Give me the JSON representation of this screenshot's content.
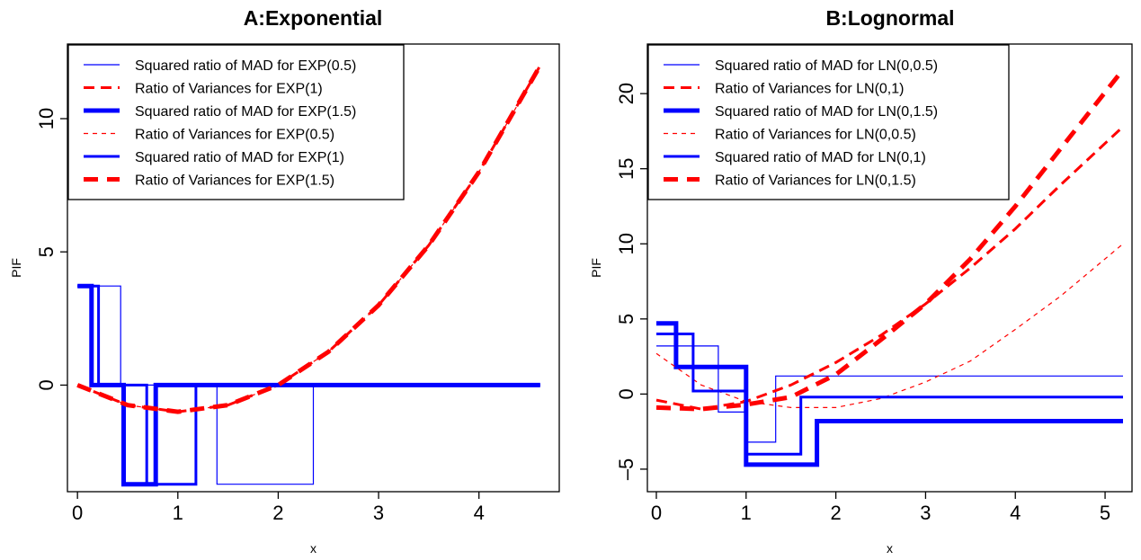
{
  "chart_data": [
    {
      "type": "line",
      "title": "A:Exponential",
      "xlabel": "x",
      "ylabel": "PIF",
      "xlim": [
        -0.1,
        4.8
      ],
      "ylim": [
        -4.0,
        12.8
      ],
      "xticks": [
        0,
        1,
        2,
        3,
        4
      ],
      "yticks": [
        0,
        5,
        10
      ],
      "grid": false,
      "legend_position": "top-left",
      "series": [
        {
          "name": "Squared ratio of MAD for EXP(0.5)",
          "color": "#0000ff",
          "style": "solid-thin",
          "x": [
            0,
            0.43,
            0.43,
            1.39,
            1.39,
            2.35,
            2.35,
            4.61
          ],
          "y": [
            3.72,
            3.72,
            0,
            0,
            -3.72,
            -3.72,
            0,
            0
          ]
        },
        {
          "name": "Ratio of Variances for EXP(1)",
          "color": "#ff0000",
          "style": "dashed-medium",
          "x": [
            0,
            0.5,
            1.0,
            1.5,
            2.0,
            2.5,
            3.0,
            3.5,
            4.0,
            4.61
          ],
          "y": [
            0,
            -0.75,
            -1.0,
            -0.75,
            0,
            1.25,
            3.0,
            5.25,
            8.0,
            11.99
          ]
        },
        {
          "name": "Squared ratio of MAD for EXP(1.5)",
          "color": "#0000ff",
          "style": "solid-thick",
          "x": [
            0,
            0.14,
            0.14,
            0.46,
            0.46,
            0.78,
            0.78,
            4.61
          ],
          "y": [
            3.72,
            3.72,
            0,
            0,
            -3.72,
            -3.72,
            0,
            0
          ]
        },
        {
          "name": "Ratio of Variances for EXP(0.5)",
          "color": "#ff0000",
          "style": "dashed-thin",
          "x": [
            0,
            0.5,
            1.0,
            1.5,
            2.0,
            2.5,
            3.0,
            3.5,
            4.0,
            4.61
          ],
          "y": [
            0,
            -0.75,
            -1.0,
            -0.75,
            0,
            1.25,
            3.0,
            5.25,
            8.0,
            11.99
          ]
        },
        {
          "name": "Squared ratio of MAD for EXP(1)",
          "color": "#0000ff",
          "style": "solid-medium",
          "x": [
            0,
            0.21,
            0.21,
            0.69,
            0.69,
            1.18,
            1.18,
            4.61
          ],
          "y": [
            3.72,
            3.72,
            0,
            0,
            -3.72,
            -3.72,
            0,
            0
          ]
        },
        {
          "name": "Ratio of Variances for EXP(1.5)",
          "color": "#ff0000",
          "style": "dashed-thick",
          "x": [
            0,
            0.5,
            1.0,
            1.5,
            2.0,
            2.5,
            3.0,
            3.5,
            4.0,
            4.61
          ],
          "y": [
            0,
            -0.75,
            -1.0,
            -0.75,
            0,
            1.25,
            3.0,
            5.25,
            8.0,
            11.99
          ]
        }
      ]
    },
    {
      "type": "line",
      "title": "B:Lognormal",
      "xlabel": "x",
      "ylabel": "PIF",
      "xlim": [
        -0.1,
        5.3
      ],
      "ylim": [
        -6.5,
        23.3
      ],
      "xticks": [
        0,
        1,
        2,
        3,
        4,
        5
      ],
      "yticks": [
        -5,
        0,
        5,
        10,
        15,
        20
      ],
      "grid": false,
      "legend_position": "top-left",
      "series": [
        {
          "name": "Squared ratio of MAD for LN(0,0.5)",
          "color": "#0000ff",
          "style": "solid-thin",
          "x": [
            0,
            0.69,
            0.69,
            1.0,
            1.0,
            1.33,
            1.33,
            5.2
          ],
          "y": [
            3.2,
            3.2,
            -1.2,
            -1.2,
            -3.2,
            -3.2,
            1.2,
            1.2
          ]
        },
        {
          "name": "Ratio of Variances for LN(0,1)",
          "color": "#ff0000",
          "style": "dashed-medium",
          "x": [
            0,
            0.5,
            1.0,
            1.5,
            2.0,
            2.5,
            3.0,
            3.5,
            4.0,
            4.5,
            5.2
          ],
          "y": [
            -0.4,
            -1.0,
            -0.5,
            0.6,
            2.1,
            3.9,
            6.0,
            8.4,
            11.0,
            13.9,
            17.8
          ]
        },
        {
          "name": "Squared ratio of MAD for LN(0,1.5)",
          "color": "#0000ff",
          "style": "solid-thick",
          "x": [
            0,
            0.22,
            0.22,
            1.0,
            1.0,
            1.79,
            1.79,
            5.2
          ],
          "y": [
            4.7,
            4.7,
            1.8,
            1.8,
            -4.7,
            -4.7,
            -1.8,
            -1.8
          ]
        },
        {
          "name": "Ratio of Variances for LN(0,0.5)",
          "color": "#ff0000",
          "style": "dashed-thin",
          "x": [
            0,
            0.5,
            1.0,
            1.5,
            2.0,
            2.5,
            3.0,
            3.5,
            4.0,
            4.5,
            5.2
          ],
          "y": [
            2.7,
            0.6,
            -0.5,
            -0.9,
            -0.9,
            -0.3,
            0.8,
            2.2,
            4.3,
            6.5,
            10.0
          ]
        },
        {
          "name": "Squared ratio of MAD for LN(0,1)",
          "color": "#0000ff",
          "style": "solid-medium",
          "x": [
            0,
            0.41,
            0.41,
            1.0,
            1.0,
            1.61,
            1.61,
            5.2
          ],
          "y": [
            4.0,
            4.0,
            0.2,
            0.2,
            -4.0,
            -4.0,
            -0.2,
            -0.2
          ]
        },
        {
          "name": "Ratio of Variances for LN(0,1.5)",
          "color": "#ff0000",
          "style": "dashed-thick",
          "x": [
            0,
            0.5,
            1.0,
            1.5,
            2.0,
            2.5,
            3.0,
            3.5,
            4.0,
            4.5,
            5.2
          ],
          "y": [
            -0.9,
            -1.0,
            -0.7,
            -0.2,
            1.3,
            3.6,
            6.0,
            9.0,
            12.5,
            16.3,
            21.6
          ]
        }
      ]
    }
  ]
}
